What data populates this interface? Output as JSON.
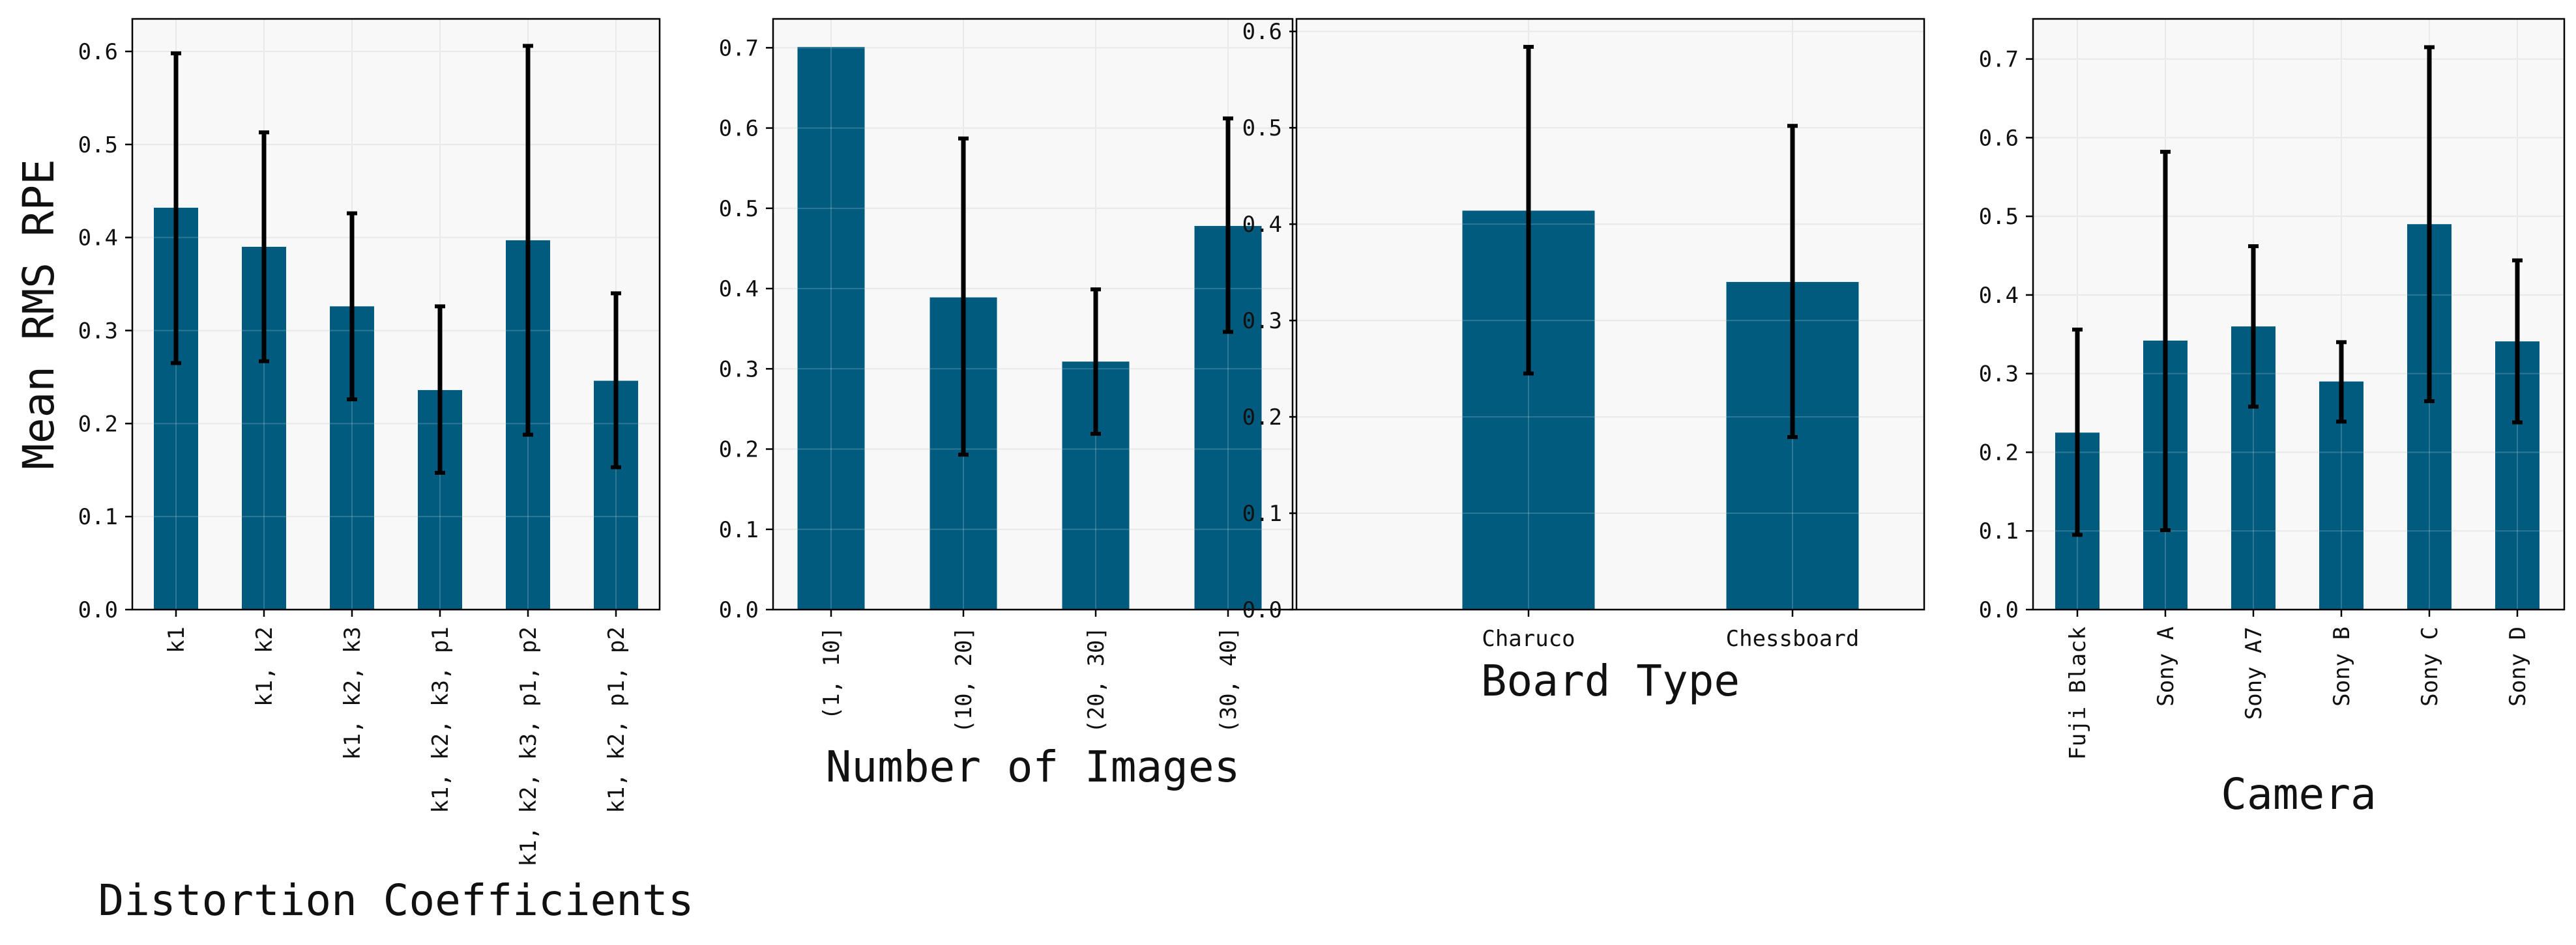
{
  "colors": {
    "bar": "#005b7f",
    "plot_bg": "#f8f8f8",
    "grid": "#e4e4e4",
    "error": "#000000"
  },
  "chart_data": [
    {
      "type": "bar",
      "xlabel": "Distortion Coefficients",
      "ylabel": "Mean RMS RPE",
      "categories": [
        "k1",
        "k1, k2",
        "k1, k2, k3",
        "k1, k2, k3, p1",
        "k1, k2, k3, p1, p2",
        "k1, k2, p1, p2"
      ],
      "values": [
        0.432,
        0.39,
        0.326,
        0.236,
        0.397,
        0.246
      ],
      "err_low": [
        0.265,
        0.267,
        0.226,
        0.147,
        0.188,
        0.153
      ],
      "err_high": [
        0.598,
        0.513,
        0.426,
        0.326,
        0.606,
        0.34
      ],
      "ylim": [
        0,
        0.635
      ],
      "yticks": [
        "0.0",
        "0.1",
        "0.2",
        "0.3",
        "0.4",
        "0.5",
        "0.6"
      ],
      "x_tick_rotation": "vertical",
      "grid": true
    },
    {
      "type": "bar",
      "xlabel": "Number of Images",
      "ylabel": "",
      "categories": [
        "(1, 10]",
        "(10, 20]",
        "(20, 30]",
        "(30, 40]"
      ],
      "values": [
        0.701,
        0.389,
        0.309,
        0.478
      ],
      "err_low": [
        null,
        0.193,
        0.219,
        0.346
      ],
      "err_high": [
        null,
        0.587,
        0.399,
        0.612
      ],
      "ylim": [
        0,
        0.736
      ],
      "yticks": [
        "0.0",
        "0.1",
        "0.2",
        "0.3",
        "0.4",
        "0.5",
        "0.6",
        "0.7"
      ],
      "x_tick_rotation": "vertical",
      "grid": true
    },
    {
      "type": "bar",
      "xlabel": "Board Type",
      "ylabel": "",
      "categories": [
        "Charuco",
        "Chessboard"
      ],
      "values": [
        0.414,
        0.34
      ],
      "err_low": [
        0.245,
        0.179
      ],
      "err_high": [
        0.584,
        0.502
      ],
      "ylim": [
        0,
        0.613
      ],
      "yticks": [
        "0.0",
        "0.1",
        "0.2",
        "0.3",
        "0.4",
        "0.5",
        "0.6"
      ],
      "x_tick_rotation": "horizontal",
      "grid": true
    },
    {
      "type": "bar",
      "xlabel": "Camera",
      "ylabel": "",
      "categories": [
        "Fuji Black",
        "Sony A",
        "Sony A7",
        "Sony B",
        "Sony C",
        "Sony D"
      ],
      "values": [
        0.225,
        0.342,
        0.36,
        0.29,
        0.49,
        0.341
      ],
      "err_low": [
        0.095,
        0.101,
        0.258,
        0.239,
        0.265,
        0.238
      ],
      "err_high": [
        0.356,
        0.582,
        0.462,
        0.34,
        0.715,
        0.444
      ],
      "ylim": [
        0,
        0.751
      ],
      "yticks": [
        "0.0",
        "0.1",
        "0.2",
        "0.3",
        "0.4",
        "0.5",
        "0.6",
        "0.7"
      ],
      "x_tick_rotation": "vertical",
      "grid": true
    }
  ]
}
